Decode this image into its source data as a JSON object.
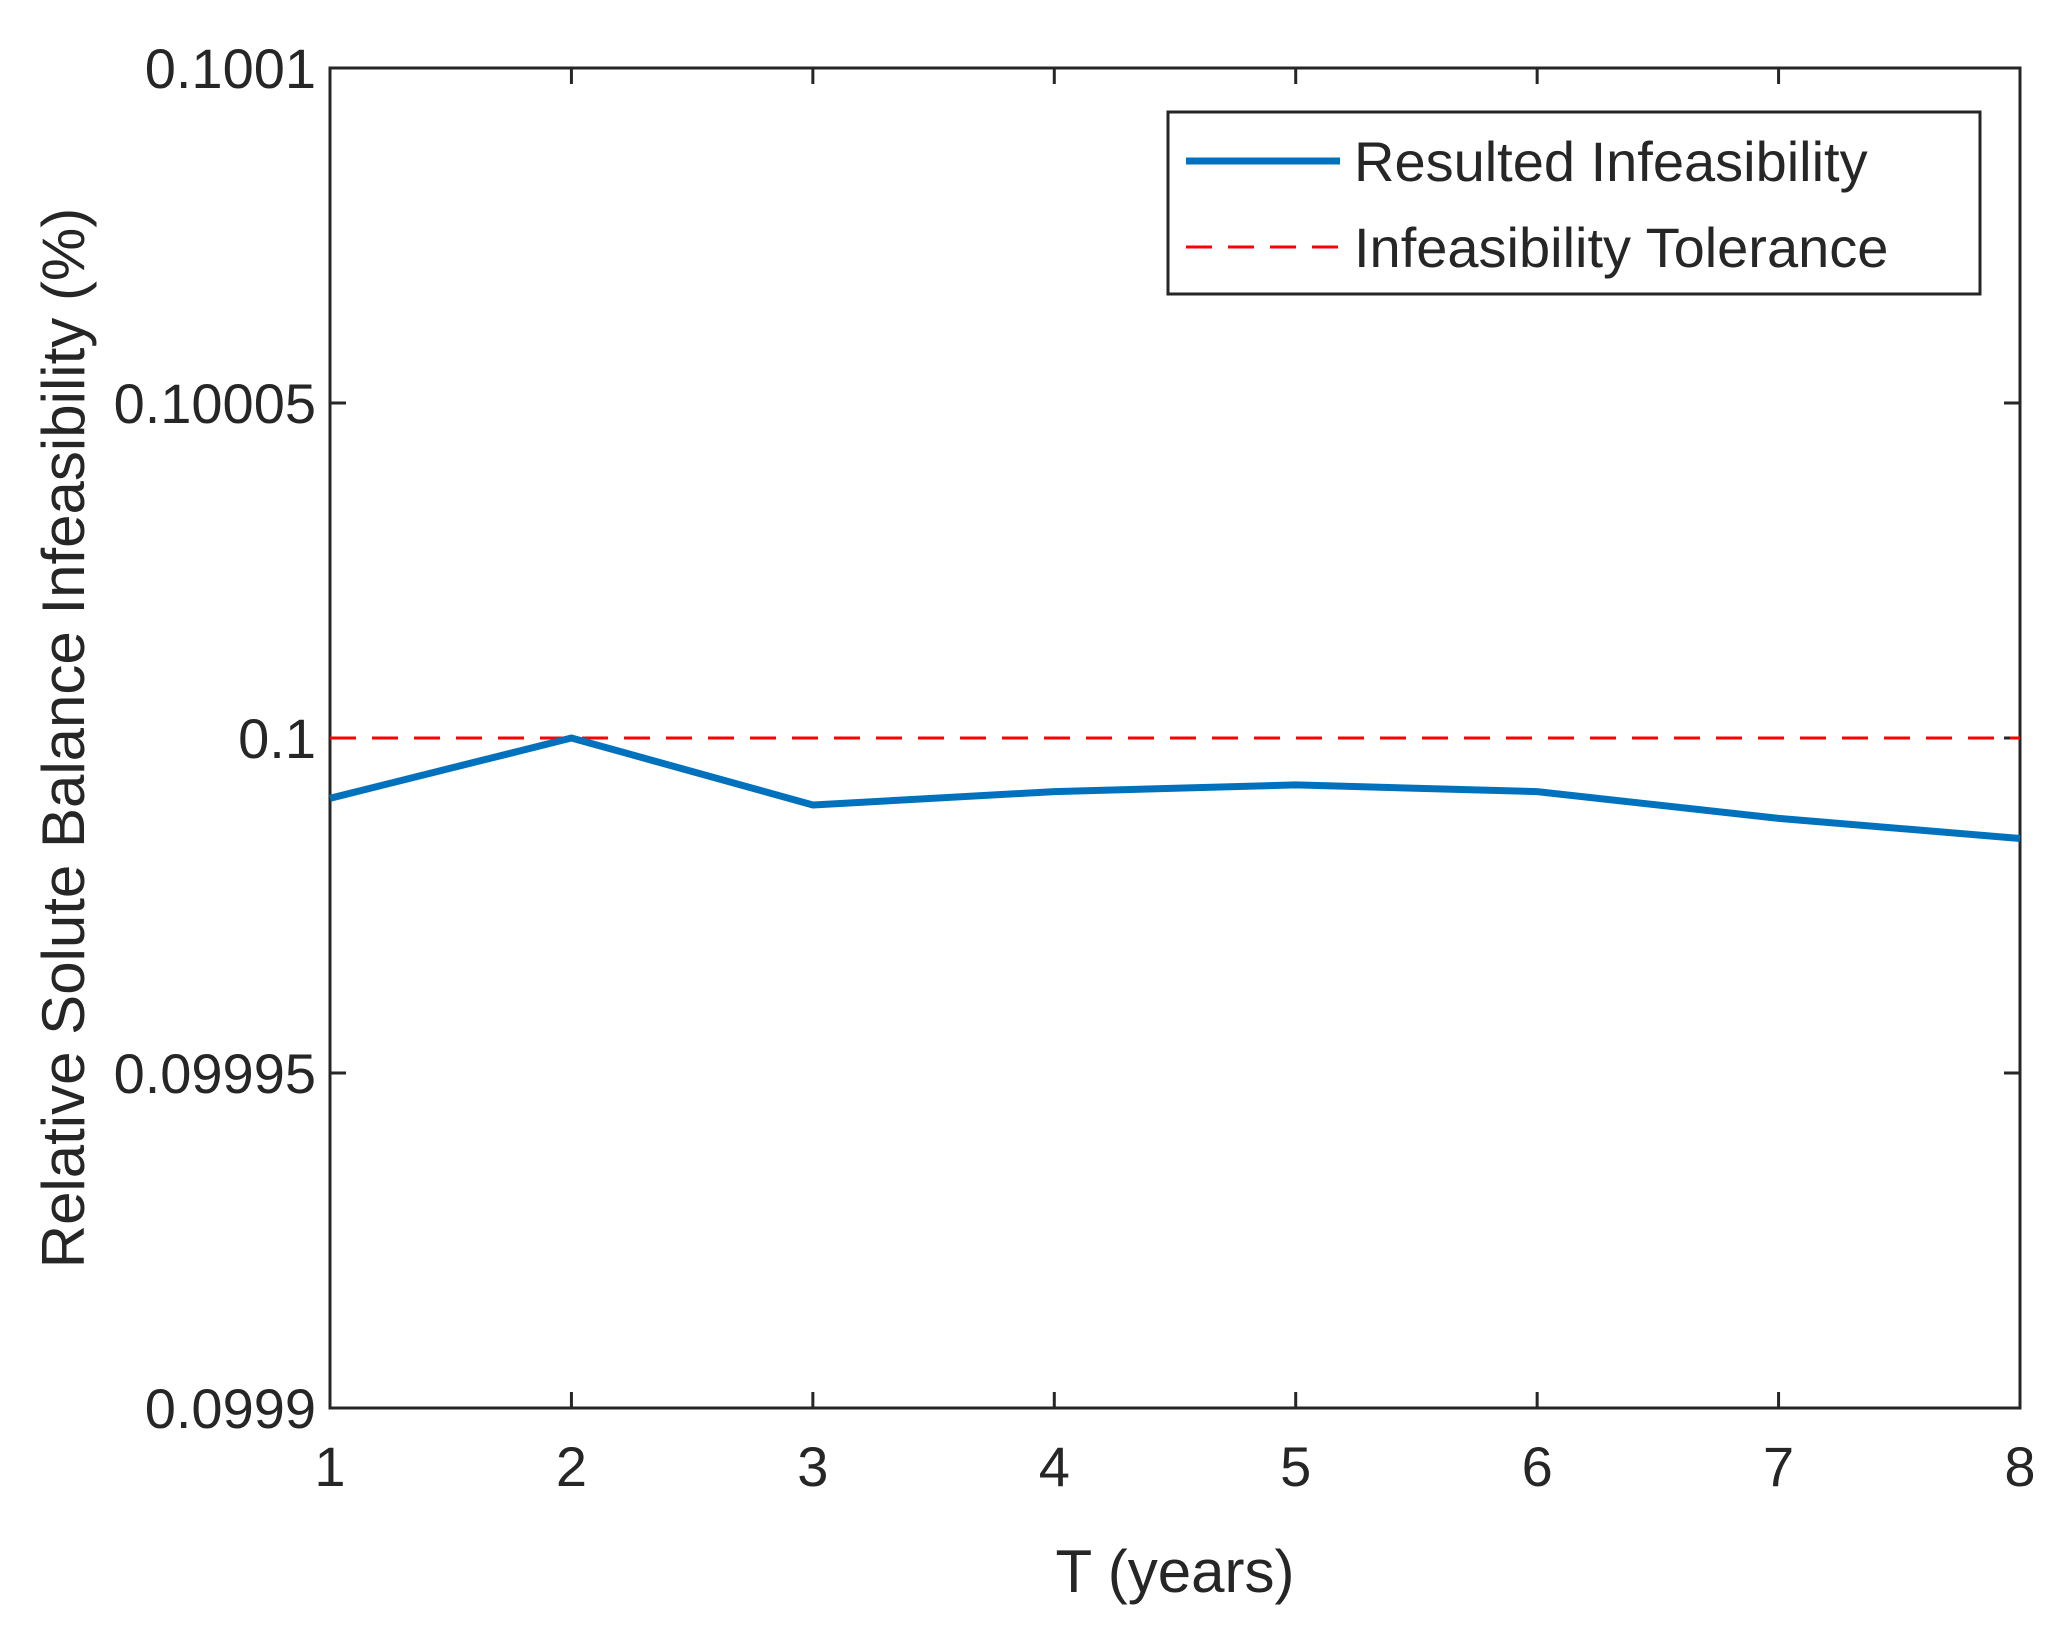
{
  "chart_data": {
    "type": "line",
    "title": "",
    "xlabel": "T (years)",
    "ylabel": "Relative Solute Balance Infeasibility (%)",
    "xlim": [
      1,
      8
    ],
    "ylim": [
      0.0999,
      0.1001
    ],
    "x_ticks": [
      1,
      2,
      3,
      4,
      5,
      6,
      7,
      8
    ],
    "x_tick_labels": [
      "1",
      "2",
      "3",
      "4",
      "5",
      "6",
      "7",
      "8"
    ],
    "y_ticks": [
      0.0999,
      0.09995,
      0.1,
      0.10005,
      0.1001
    ],
    "y_tick_labels": [
      "0.0999",
      "0.09995",
      "0.1",
      "0.10005",
      "0.1001"
    ],
    "grid": false,
    "legend_position": "top-right",
    "series": [
      {
        "name": "Resulted Infeasibility",
        "style": "solid",
        "color": "#0072bd",
        "x": [
          1,
          2,
          3,
          4,
          5,
          6,
          7,
          8
        ],
        "values": [
          0.099991,
          0.1,
          0.09999,
          0.099992,
          0.099993,
          0.099992,
          0.099988,
          0.099985
        ]
      },
      {
        "name": "Infeasibility Tolerance",
        "style": "dashed",
        "color": "#ff0000",
        "x": [
          1,
          8
        ],
        "values": [
          0.1,
          0.1
        ]
      }
    ]
  }
}
